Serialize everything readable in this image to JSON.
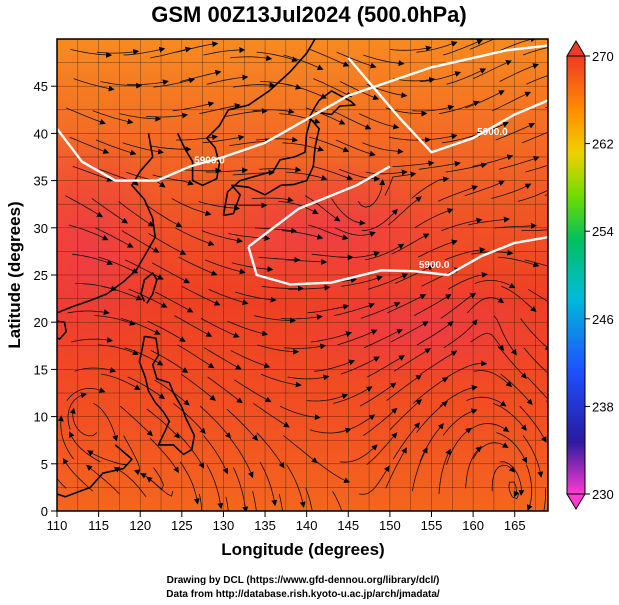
{
  "chart_data": {
    "type": "heatmap",
    "title": "GSM 00Z13Jul2024 (500.0hPa)",
    "xlabel": "Longitude (degrees)",
    "ylabel": "Latitude  (degrees)",
    "xlim": [
      110,
      169
    ],
    "ylim": [
      0,
      50
    ],
    "xticks": [
      "110",
      "115",
      "120",
      "125",
      "130",
      "135",
      "140",
      "145",
      "150",
      "155",
      "160",
      "165"
    ],
    "yticks": [
      "0",
      "5",
      "10",
      "15",
      "20",
      "25",
      "30",
      "35",
      "40",
      "45"
    ],
    "colorbar": {
      "min": 230,
      "max": 270,
      "ticks": [
        "270",
        "262",
        "254",
        "246",
        "238",
        "230"
      ],
      "colors": [
        "#ff3ad0",
        "#2a1aa0",
        "#1e50ff",
        "#00bcd8",
        "#00c060",
        "#70dc00",
        "#f0d000",
        "#ff8a00",
        "#f03a24"
      ]
    },
    "contours": [
      {
        "label": "5900.0",
        "points": [
          [
            110,
            40.5
          ],
          [
            113,
            37
          ],
          [
            117,
            35
          ],
          [
            122,
            35
          ],
          [
            126,
            36.5
          ],
          [
            130,
            37.5
          ],
          [
            135,
            39
          ],
          [
            140,
            41.5
          ],
          [
            145,
            44
          ],
          [
            150,
            45.5
          ],
          [
            155,
            47
          ],
          [
            160,
            48
          ],
          [
            164,
            48.8
          ],
          [
            169,
            49.3
          ]
        ]
      },
      {
        "label": "5900.0",
        "points": [
          [
            145,
            48
          ],
          [
            151,
            41.8
          ],
          [
            155,
            38
          ],
          [
            160,
            39.5
          ],
          [
            165,
            42
          ],
          [
            169,
            43.5
          ]
        ]
      },
      {
        "label": "5900.0",
        "points": [
          [
            133,
            28
          ],
          [
            134,
            25
          ],
          [
            138,
            24
          ],
          [
            143,
            24.2
          ],
          [
            149,
            25.5
          ],
          [
            153,
            25.4
          ],
          [
            157,
            25
          ],
          [
            161,
            27
          ],
          [
            165,
            28.4
          ],
          [
            169,
            29
          ]
        ]
      },
      {
        "label": "5900.0",
        "points": [
          [
            133,
            28
          ],
          [
            139,
            32
          ],
          [
            146,
            34.5
          ],
          [
            150,
            36.5
          ]
        ]
      }
    ],
    "legend": "right"
  },
  "credits": {
    "line1": "Drawing by DCL (https://www.gfd-dennou.org/library/dcl/)",
    "line2": "Data from http://database.rish.kyoto-u.ac.jp/arch/jmadata/"
  }
}
